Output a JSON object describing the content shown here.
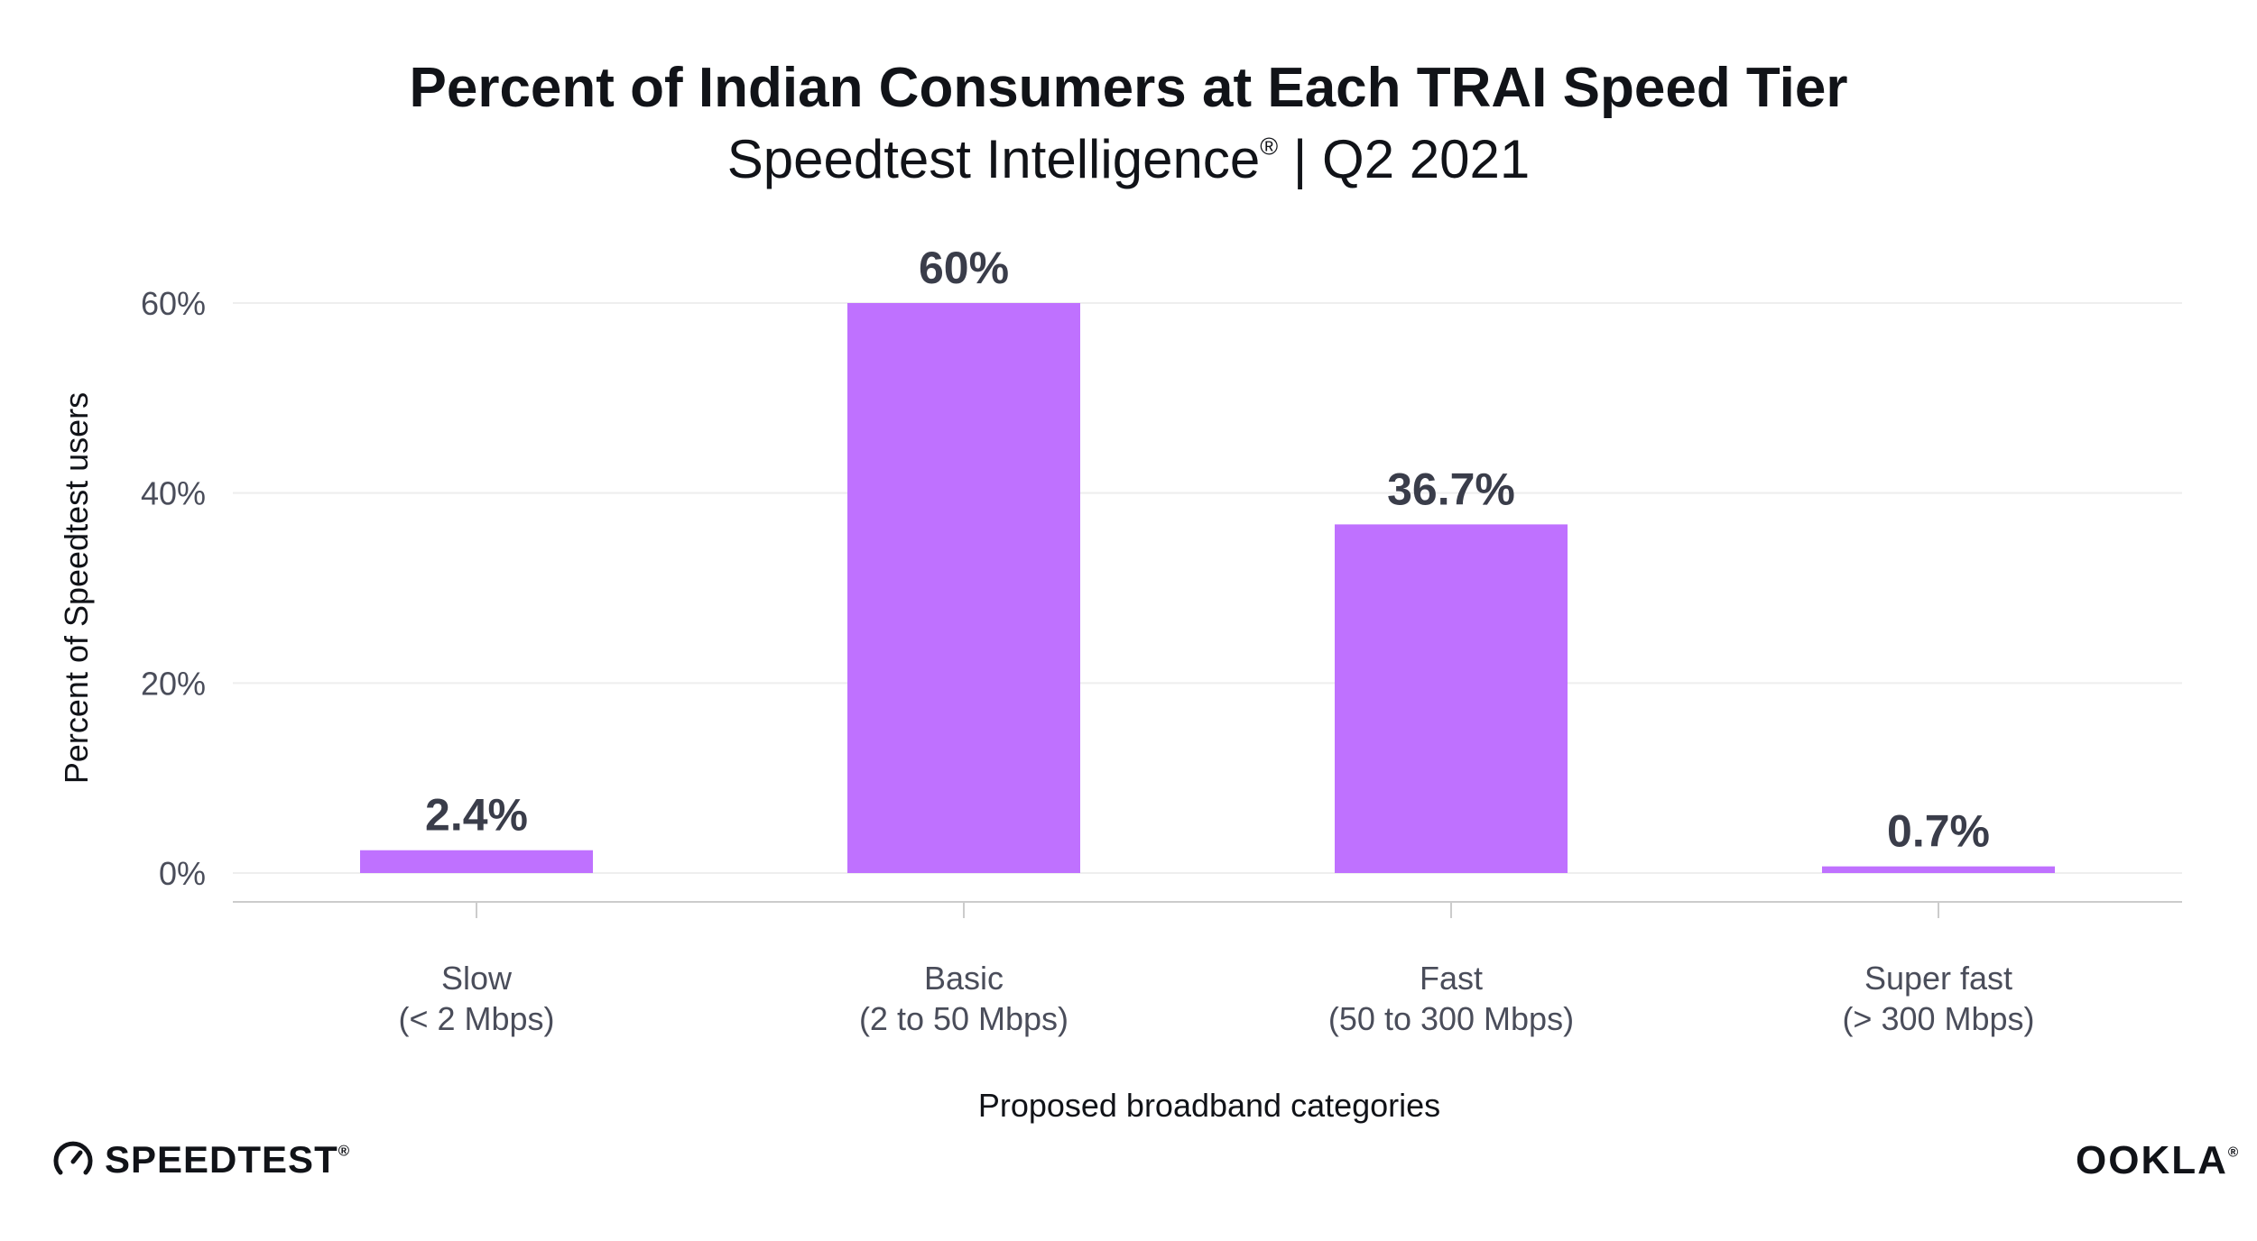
{
  "chart_data": {
    "type": "bar",
    "title": "Percent of Indian Consumers at Each TRAI Speed Tier",
    "subtitle": {
      "prefix": "Speedtest Intelligence",
      "mark": "®",
      "suffix": " | Q2 2021"
    },
    "categories": [
      {
        "line1": "Slow",
        "line2": "(< 2 Mbps)"
      },
      {
        "line1": "Basic",
        "line2": "(2 to 50 Mbps)"
      },
      {
        "line1": "Fast",
        "line2": "(50 to 300 Mbps)"
      },
      {
        "line1": "Super fast",
        "line2": "(> 300 Mbps)"
      }
    ],
    "values": [
      2.4,
      60,
      36.7,
      0.7
    ],
    "value_labels": [
      "2.4%",
      "60%",
      "36.7%",
      "0.7%"
    ],
    "ylim": [
      0,
      60
    ],
    "yticks": [
      0,
      20,
      40,
      60
    ],
    "ytick_labels": [
      "0%",
      "20%",
      "40%",
      "60%"
    ],
    "xlabel": "Proposed broadband categories",
    "ylabel": "Percent of Speedtest users",
    "bar_color": "#bf71ff",
    "grid": true
  },
  "branding": {
    "left_name": "SPEEDTEST",
    "left_mark": "®",
    "right_name": "OOKLA",
    "right_mark": "®"
  },
  "colors": {
    "text_dark": "#111318",
    "text_axis": "#4a4d5a",
    "grid": "#eeeeee",
    "axis": "#cccccc"
  }
}
